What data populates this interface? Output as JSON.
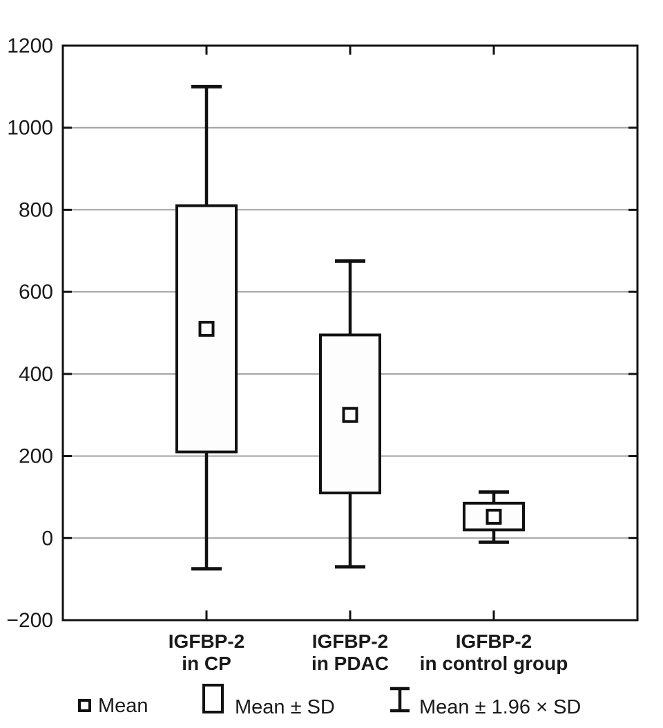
{
  "chart_data": {
    "type": "box",
    "title": "",
    "xlabel": "",
    "ylabel": "",
    "grid": true,
    "y_axis": {
      "min": -200,
      "max": 1200,
      "step": 200,
      "tick_labels": [
        "1200",
        "1000",
        "800",
        "600",
        "400",
        "200",
        "0",
        "−200"
      ]
    },
    "categories": [
      {
        "label_lines": [
          "IGFBP-2",
          "in CP"
        ],
        "mean": 510,
        "sd_low": 210,
        "sd_high": 810,
        "whisker_low": -75,
        "whisker_high": 1100
      },
      {
        "label_lines": [
          "IGFBP-2",
          "in PDAC"
        ],
        "mean": 300,
        "sd_low": 110,
        "sd_high": 495,
        "whisker_low": -70,
        "whisker_high": 675
      },
      {
        "label_lines": [
          "IGFBP-2",
          "in control group"
        ],
        "mean": 52,
        "sd_low": 20,
        "sd_high": 85,
        "whisker_low": -10,
        "whisker_high": 112
      }
    ],
    "legend": [
      {
        "icon": "mean-square-icon",
        "label": "Mean"
      },
      {
        "icon": "sd-box-icon",
        "label": "Mean ± SD"
      },
      {
        "icon": "whisker-icon",
        "label": "Mean ± 1.96 × SD"
      }
    ],
    "legend_position": "bottom",
    "colors": {
      "line": "#111111",
      "grid": "#a0a0a0",
      "box_fill": "#fdfdfd",
      "mean_fill": "#ffffff",
      "background": "#ffffff",
      "text": "#1a1a1a"
    }
  }
}
